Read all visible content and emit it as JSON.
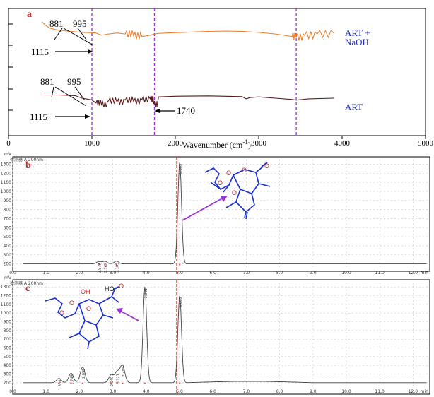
{
  "chart_data": [
    {
      "type": "line",
      "panel_label": "a",
      "xlabel": "Wavenumber (cm",
      "xlabel_sup": "-1",
      "xlabel_end": ")",
      "xlim": [
        0,
        5000
      ],
      "x_ticks": [
        "0",
        "1000",
        "2000",
        "3000",
        "4000",
        "5000"
      ],
      "reference_lines_x": [
        1000,
        1750,
        3450
      ],
      "colors": {
        "top": "#f07a20",
        "bottom": "#5a1a1a"
      },
      "series": [
        {
          "name": "ART + NaOH",
          "name_line1": "ART +",
          "name_line2": "NaOH",
          "x": [
            400,
            450,
            500,
            600,
            700,
            800,
            881,
            995,
            1050,
            1115,
            1200,
            1300,
            1400,
            1500,
            1600,
            1700,
            1750,
            1800,
            2000,
            2200,
            2400,
            2600,
            2800,
            3000,
            3200,
            3400,
            3450,
            3550,
            3700,
            3900
          ],
          "y": [
            60,
            48,
            40,
            34,
            31,
            29,
            27,
            26,
            25,
            18,
            22,
            25,
            22,
            16,
            14,
            18,
            22,
            24,
            26,
            28,
            30,
            31,
            30,
            27,
            22,
            14,
            12,
            18,
            22,
            25
          ]
        },
        {
          "name": "ART",
          "x": [
            400,
            500,
            600,
            700,
            800,
            881,
            995,
            1050,
            1115,
            1200,
            1300,
            1400,
            1500,
            1600,
            1700,
            1740,
            1800,
            2000,
            2400,
            2800,
            2850,
            2900,
            3000,
            3200,
            3400,
            3450,
            3600,
            3900
          ],
          "y": [
            30,
            30,
            30,
            29,
            28,
            20,
            15,
            5,
            0,
            12,
            8,
            14,
            10,
            16,
            18,
            2,
            24,
            26,
            27,
            25,
            18,
            22,
            24,
            20,
            16,
            14,
            18,
            20
          ]
        }
      ],
      "annotations": [
        {
          "text": "881",
          "target": "top"
        },
        {
          "text": "995",
          "target": "top"
        },
        {
          "text": "1115",
          "target": "top"
        },
        {
          "text": "881",
          "target": "bottom"
        },
        {
          "text": "995",
          "target": "bottom"
        },
        {
          "text": "1115",
          "target": "bottom"
        },
        {
          "text": "1740",
          "target": "bottom"
        }
      ]
    },
    {
      "type": "line",
      "panel_label": "b",
      "y_unit": "mV",
      "detector": "检测器 A 200nm",
      "xlim": [
        0,
        12.5
      ],
      "ylim": [
        150,
        1350
      ],
      "x_ticks": [
        "0.0",
        "1.0",
        "2.0",
        "3.0",
        "4.0",
        "5.0",
        "6.0",
        "7.0",
        "8.0",
        "9.0",
        "10.0",
        "11.0",
        "12.0"
      ],
      "x_unit": "min",
      "y_ticks": [
        "200",
        "300",
        "400",
        "500",
        "600",
        "700",
        "800",
        "900",
        "1000",
        "1100",
        "1200",
        "1300"
      ],
      "peaks": [
        {
          "rt": 2.579,
          "label": "2.579",
          "height": 225
        },
        {
          "rt": 2.762,
          "label": "2.762",
          "height": 228
        },
        {
          "rt": 3.109,
          "label": "3.109",
          "height": 230
        },
        {
          "rt": 5.005,
          "label": "5.005",
          "height": 1320
        }
      ]
    },
    {
      "type": "line",
      "panel_label": "c",
      "y_unit": "mV",
      "detector": "检测器 A 200nm",
      "xlim": [
        0,
        12.5
      ],
      "ylim": [
        150,
        1350
      ],
      "x_ticks": [
        "0.0",
        "1.0",
        "2.0",
        "3.0",
        "4.0",
        "5.0",
        "6.0",
        "7.0",
        "8.0",
        "9.0",
        "10.0",
        "11.0",
        "12.0"
      ],
      "x_unit": "min",
      "y_ticks": [
        "200",
        "300",
        "400",
        "500",
        "600",
        "700",
        "800",
        "900",
        "1000",
        "1100",
        "1200",
        "1300"
      ],
      "peaks": [
        {
          "rt": 1.384,
          "label": "1.384",
          "height": 250
        },
        {
          "rt": 1.749,
          "label": "1.749",
          "height": 310
        },
        {
          "rt": 2.095,
          "label": "2.095",
          "height": 380
        },
        {
          "rt": 2.949,
          "label": "2.949",
          "height": 290
        },
        {
          "rt": 3.127,
          "label": "3.127",
          "height": 320
        },
        {
          "rt": 3.289,
          "label": "3.289",
          "height": 400
        },
        {
          "rt": 3.961,
          "label": "3.961",
          "height": 1300
        },
        {
          "rt": 5.005,
          "label": "5.005",
          "height": 1200
        }
      ]
    }
  ]
}
